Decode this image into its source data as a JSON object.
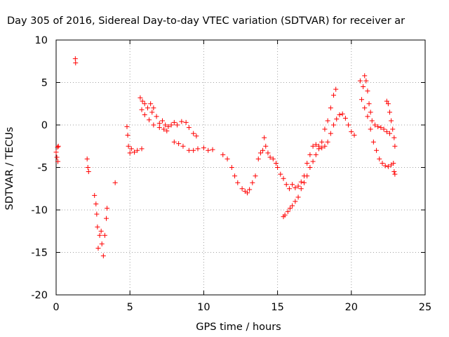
{
  "chart_data": {
    "type": "scatter",
    "title": "Day 305 of 2016, Sidereal Day-to-day VTEC variation (SDTVAR) for receiver ar",
    "xlabel": "GPS time / hours",
    "ylabel": "SDTVAR / TECUs",
    "xlim": [
      0,
      25
    ],
    "ylim": [
      -20,
      10
    ],
    "xticks": [
      "0",
      "5",
      "10",
      "15",
      "20",
      "25"
    ],
    "yticks": [
      "10",
      "5",
      "0",
      "-5",
      "-10",
      "-15",
      "-20"
    ],
    "grid": true,
    "marker": "+",
    "color": "#ff0000",
    "series": [
      {
        "name": "SDTVAR",
        "points": [
          [
            0.0,
            -3.2
          ],
          [
            0.05,
            -3.8
          ],
          [
            0.1,
            -2.6
          ],
          [
            0.12,
            -4.3
          ],
          [
            0.15,
            -2.5
          ],
          [
            1.3,
            7.8
          ],
          [
            1.32,
            7.3
          ],
          [
            2.1,
            -4.0
          ],
          [
            2.15,
            -5.0
          ],
          [
            2.2,
            -5.5
          ],
          [
            2.6,
            -8.3
          ],
          [
            2.7,
            -9.3
          ],
          [
            2.75,
            -10.5
          ],
          [
            2.8,
            -12.0
          ],
          [
            2.85,
            -14.5
          ],
          [
            2.95,
            -13.0
          ],
          [
            3.05,
            -12.5
          ],
          [
            3.1,
            -14.0
          ],
          [
            3.2,
            -15.4
          ],
          [
            3.3,
            -13.0
          ],
          [
            3.4,
            -11.0
          ],
          [
            3.45,
            -9.8
          ],
          [
            4.0,
            -6.8
          ],
          [
            4.8,
            -0.2
          ],
          [
            4.85,
            -1.2
          ],
          [
            4.9,
            -2.5
          ],
          [
            5.0,
            -3.3
          ],
          [
            5.1,
            -2.8
          ],
          [
            5.3,
            -3.2
          ],
          [
            5.5,
            -3.0
          ],
          [
            5.8,
            -2.8
          ],
          [
            5.7,
            3.2
          ],
          [
            5.85,
            2.8
          ],
          [
            6.0,
            2.5
          ],
          [
            6.2,
            2.0
          ],
          [
            6.4,
            2.5
          ],
          [
            6.5,
            1.5
          ],
          [
            6.6,
            2.0
          ],
          [
            6.8,
            1.0
          ],
          [
            7.0,
            0.2
          ],
          [
            7.2,
            0.5
          ],
          [
            7.4,
            0.0
          ],
          [
            7.6,
            -0.2
          ],
          [
            7.8,
            0.0
          ],
          [
            8.0,
            0.3
          ],
          [
            8.2,
            0.0
          ],
          [
            8.5,
            0.4
          ],
          [
            8.8,
            0.3
          ],
          [
            9.0,
            -0.3
          ],
          [
            9.3,
            -1.0
          ],
          [
            9.5,
            -1.3
          ],
          [
            5.8,
            1.8
          ],
          [
            6.0,
            1.2
          ],
          [
            6.3,
            0.6
          ],
          [
            6.6,
            0.0
          ],
          [
            7.0,
            -0.3
          ],
          [
            7.3,
            -0.5
          ],
          [
            7.5,
            -0.7
          ],
          [
            8.0,
            -2.0
          ],
          [
            8.3,
            -2.2
          ],
          [
            8.6,
            -2.5
          ],
          [
            9.0,
            -3.0
          ],
          [
            9.3,
            -3.0
          ],
          [
            9.6,
            -2.8
          ],
          [
            10.0,
            -2.7
          ],
          [
            10.3,
            -3.0
          ],
          [
            10.6,
            -2.9
          ],
          [
            11.3,
            -3.5
          ],
          [
            11.6,
            -4.0
          ],
          [
            11.9,
            -5.0
          ],
          [
            12.1,
            -6.0
          ],
          [
            12.3,
            -6.8
          ],
          [
            12.6,
            -7.5
          ],
          [
            12.8,
            -7.8
          ],
          [
            12.95,
            -8.0
          ],
          [
            13.1,
            -7.6
          ],
          [
            13.3,
            -6.8
          ],
          [
            13.5,
            -6.0
          ],
          [
            13.7,
            -4.0
          ],
          [
            13.85,
            -3.3
          ],
          [
            14.0,
            -3.0
          ],
          [
            14.1,
            -1.5
          ],
          [
            14.2,
            -2.5
          ],
          [
            14.35,
            -3.3
          ],
          [
            14.5,
            -3.8
          ],
          [
            14.7,
            -4.0
          ],
          [
            14.9,
            -4.5
          ],
          [
            15.0,
            -5.0
          ],
          [
            15.2,
            -5.8
          ],
          [
            15.4,
            -6.3
          ],
          [
            15.6,
            -7.0
          ],
          [
            15.8,
            -7.5
          ],
          [
            16.0,
            -7.0
          ],
          [
            16.2,
            -7.4
          ],
          [
            16.4,
            -7.2
          ],
          [
            16.6,
            -6.7
          ],
          [
            16.8,
            -6.0
          ],
          [
            17.0,
            -4.5
          ],
          [
            17.2,
            -3.5
          ],
          [
            17.4,
            -2.5
          ],
          [
            17.6,
            -2.3
          ],
          [
            17.8,
            -2.5
          ],
          [
            18.0,
            -2.7
          ],
          [
            18.2,
            -2.5
          ],
          [
            18.4,
            -2.0
          ],
          [
            18.6,
            -1.0
          ],
          [
            18.8,
            0.0
          ],
          [
            19.0,
            0.7
          ],
          [
            19.2,
            1.2
          ],
          [
            19.4,
            1.3
          ],
          [
            19.6,
            0.8
          ],
          [
            19.8,
            0.0
          ],
          [
            20.0,
            -0.8
          ],
          [
            20.2,
            -1.2
          ],
          [
            15.4,
            -10.8
          ],
          [
            15.5,
            -10.6
          ],
          [
            15.7,
            -10.2
          ],
          [
            15.85,
            -9.8
          ],
          [
            16.0,
            -9.5
          ],
          [
            16.2,
            -9.0
          ],
          [
            16.4,
            -8.5
          ],
          [
            16.6,
            -7.5
          ],
          [
            16.8,
            -6.8
          ],
          [
            17.0,
            -6.0
          ],
          [
            17.2,
            -5.0
          ],
          [
            17.4,
            -4.3
          ],
          [
            17.6,
            -3.5
          ],
          [
            17.8,
            -2.8
          ],
          [
            18.0,
            -2.0
          ],
          [
            18.2,
            -0.5
          ],
          [
            18.4,
            0.5
          ],
          [
            18.6,
            2.0
          ],
          [
            18.8,
            3.5
          ],
          [
            18.95,
            4.2
          ],
          [
            20.6,
            5.2
          ],
          [
            20.8,
            4.5
          ],
          [
            20.9,
            5.8
          ],
          [
            21.0,
            5.2
          ],
          [
            21.1,
            4.0
          ],
          [
            21.2,
            2.5
          ],
          [
            21.3,
            1.5
          ],
          [
            21.4,
            0.5
          ],
          [
            21.6,
            0.0
          ],
          [
            21.8,
            -0.2
          ],
          [
            22.0,
            -0.3
          ],
          [
            22.2,
            -0.5
          ],
          [
            22.4,
            -0.8
          ],
          [
            22.6,
            -1.0
          ],
          [
            20.7,
            3.0
          ],
          [
            20.9,
            2.0
          ],
          [
            21.1,
            1.0
          ],
          [
            21.3,
            -0.5
          ],
          [
            21.5,
            -2.0
          ],
          [
            21.7,
            -3.0
          ],
          [
            21.9,
            -4.0
          ],
          [
            22.1,
            -4.5
          ],
          [
            22.3,
            -4.8
          ],
          [
            22.5,
            -4.9
          ],
          [
            22.7,
            -4.7
          ],
          [
            22.4,
            2.8
          ],
          [
            22.5,
            2.5
          ],
          [
            22.6,
            1.5
          ],
          [
            22.7,
            0.5
          ],
          [
            22.8,
            -0.5
          ],
          [
            22.9,
            -1.5
          ],
          [
            22.95,
            -2.5
          ],
          [
            22.85,
            -4.5
          ],
          [
            22.9,
            -5.5
          ],
          [
            22.95,
            -5.8
          ]
        ]
      }
    ]
  }
}
